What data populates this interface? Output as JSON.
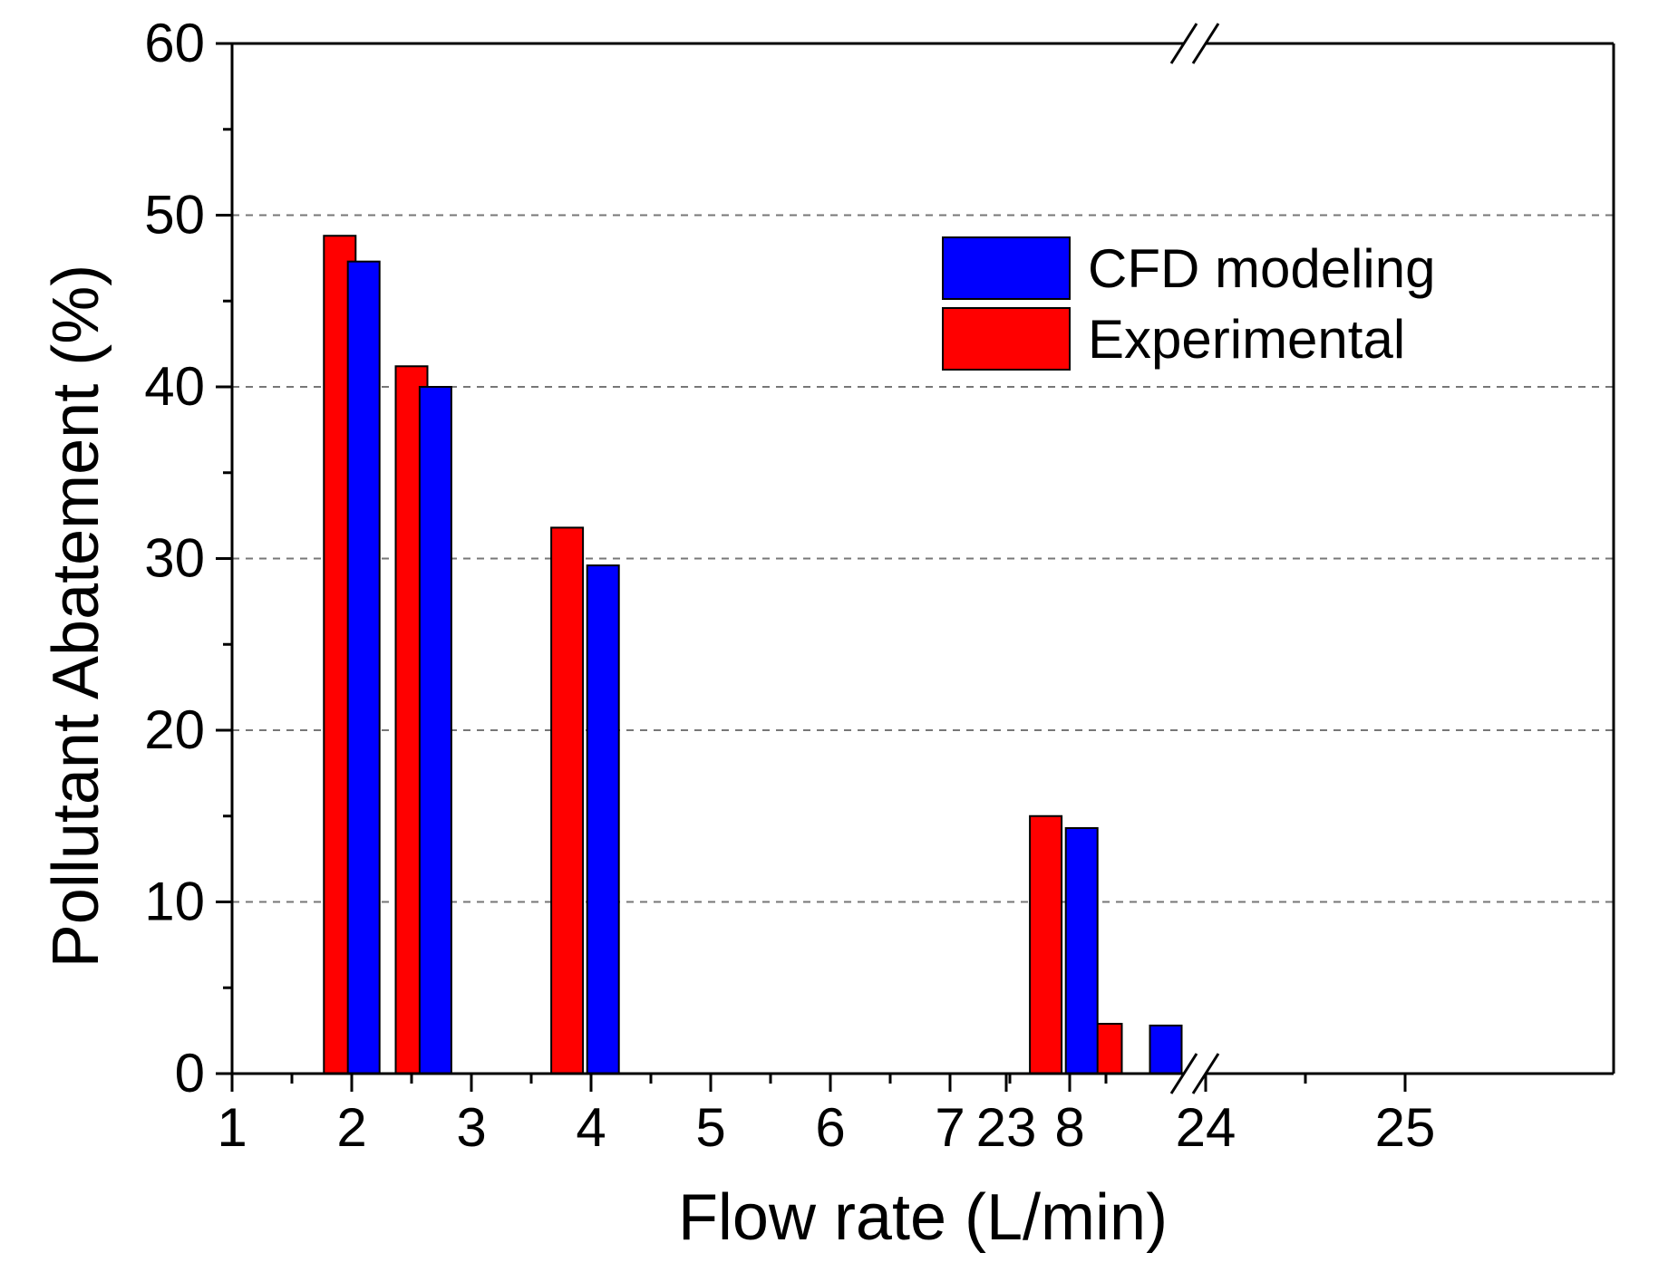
{
  "chart_data": {
    "type": "bar",
    "xlabel": "Flow rate (L/min)",
    "ylabel": "Pollutant Abatement (%)",
    "ylim": [
      0,
      60
    ],
    "y_ticks": [
      "0",
      "10",
      "20",
      "30",
      "40",
      "50",
      "60"
    ],
    "y_gridlines": [
      10,
      20,
      30,
      40,
      50
    ],
    "grid": "horizontal dashed",
    "x_axis_break": "between 8 and 23",
    "x_ticks_segment1": [
      "1",
      "2",
      "3",
      "4",
      "5",
      "6",
      "7",
      "8"
    ],
    "x_ticks_segment2": [
      "23",
      "24",
      "25"
    ],
    "legend_position": "top-right",
    "series": [
      {
        "name": "Experimental",
        "color": "#ff0000",
        "x": [
          1.9,
          2.5,
          3.8,
          7.8,
          23.5
        ],
        "values": [
          48.8,
          41.2,
          31.8,
          15.0,
          2.9
        ]
      },
      {
        "name": "CFD modeling",
        "color": "#0000ff",
        "x": [
          2.1,
          2.7,
          4.1,
          8.1,
          23.8
        ],
        "values": [
          47.3,
          40.0,
          29.6,
          14.3,
          2.8
        ]
      }
    ],
    "legend_order": [
      "CFD modeling",
      "Experimental"
    ]
  }
}
